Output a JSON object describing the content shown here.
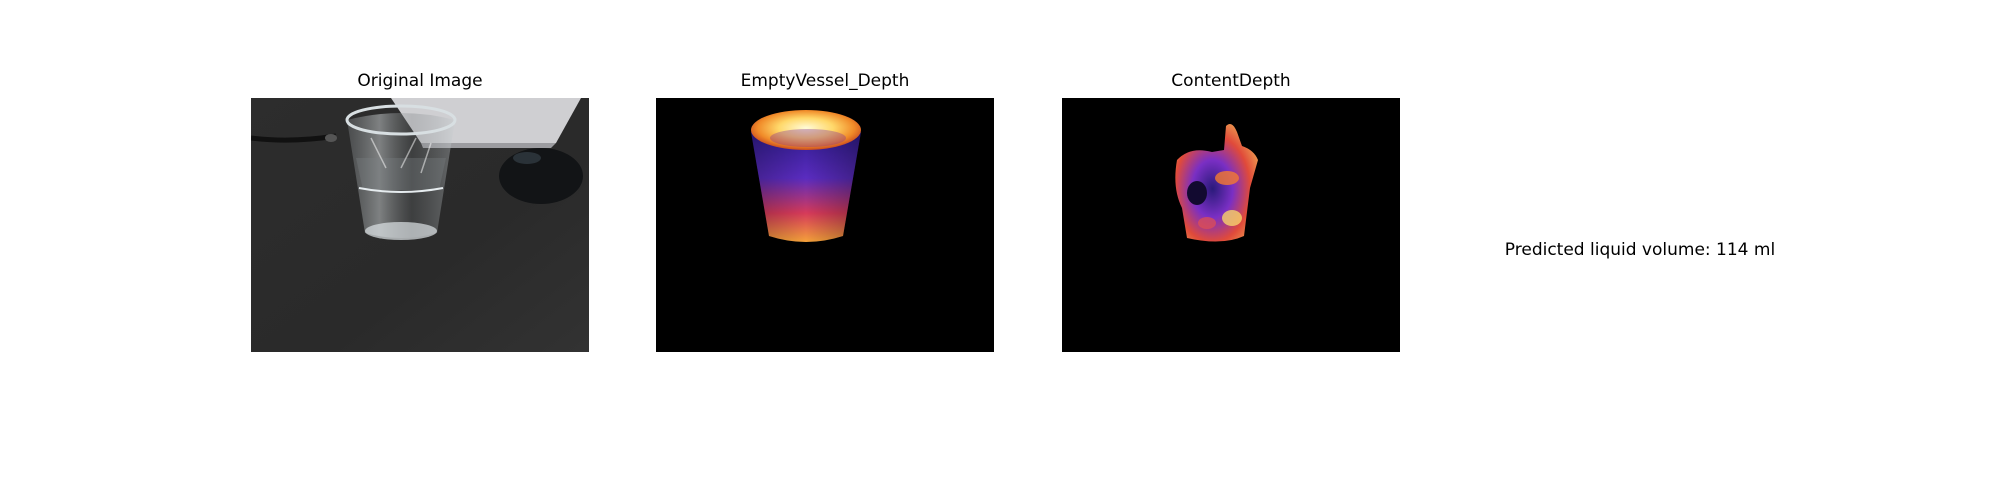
{
  "panels": [
    {
      "title": "Original Image"
    },
    {
      "title": "EmptyVessel_Depth"
    },
    {
      "title": "ContentDepth"
    }
  ],
  "result": {
    "text": "Predicted liquid volume: 114 ml"
  },
  "colors": {
    "background": "#ffffff",
    "desk": "#2c2c2c",
    "depth_background": "#000000",
    "depth_low": "#3a1d9a",
    "depth_mid": "#e8452c",
    "depth_high": "#fff7b0"
  }
}
